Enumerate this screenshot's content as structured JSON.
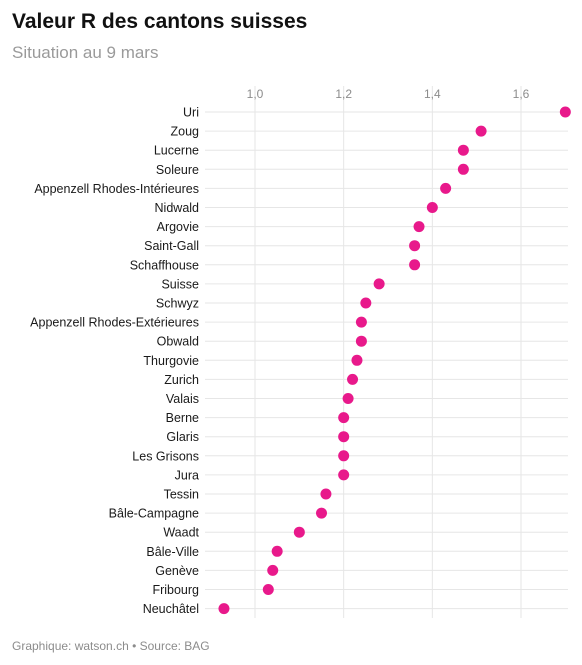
{
  "header": {
    "title": "Valeur R des cantons suisses",
    "subtitle": "Situation au 9 mars"
  },
  "footer": {
    "credit": "Graphique: watson.ch • Source: BAG"
  },
  "colors": {
    "dot": "#e8198b",
    "grid": "#e6e6e6",
    "tick_text": "#8c8c8c",
    "label_text": "#1a1a1a"
  },
  "chart_data": {
    "type": "scatter",
    "title": "Valeur R des cantons suisses",
    "subtitle": "Situation au 9 mars",
    "xlabel": "",
    "ylabel": "",
    "xlim": [
      0.92,
      1.7
    ],
    "x_ticks": [
      1.0,
      1.2,
      1.4,
      1.6
    ],
    "x_tick_labels": [
      "1,0",
      "1,2",
      "1,4",
      "1,6"
    ],
    "grid": true,
    "categories": [
      "Uri",
      "Zoug",
      "Lucerne",
      "Soleure",
      "Appenzell Rhodes-Intérieures",
      "Nidwald",
      "Argovie",
      "Saint-Gall",
      "Schaffhouse",
      "Suisse",
      "Schwyz",
      "Appenzell Rhodes-Extérieures",
      "Obwald",
      "Thurgovie",
      "Zurich",
      "Valais",
      "Berne",
      "Glaris",
      "Les Grisons",
      "Jura",
      "Tessin",
      "Bâle-Campagne",
      "Waadt",
      "Bâle-Ville",
      "Genève",
      "Fribourg",
      "Neuchâtel"
    ],
    "values": [
      1.7,
      1.51,
      1.47,
      1.47,
      1.43,
      1.4,
      1.37,
      1.36,
      1.36,
      1.28,
      1.25,
      1.24,
      1.24,
      1.23,
      1.22,
      1.21,
      1.2,
      1.2,
      1.2,
      1.2,
      1.16,
      1.15,
      1.1,
      1.05,
      1.04,
      1.03,
      0.93
    ]
  }
}
